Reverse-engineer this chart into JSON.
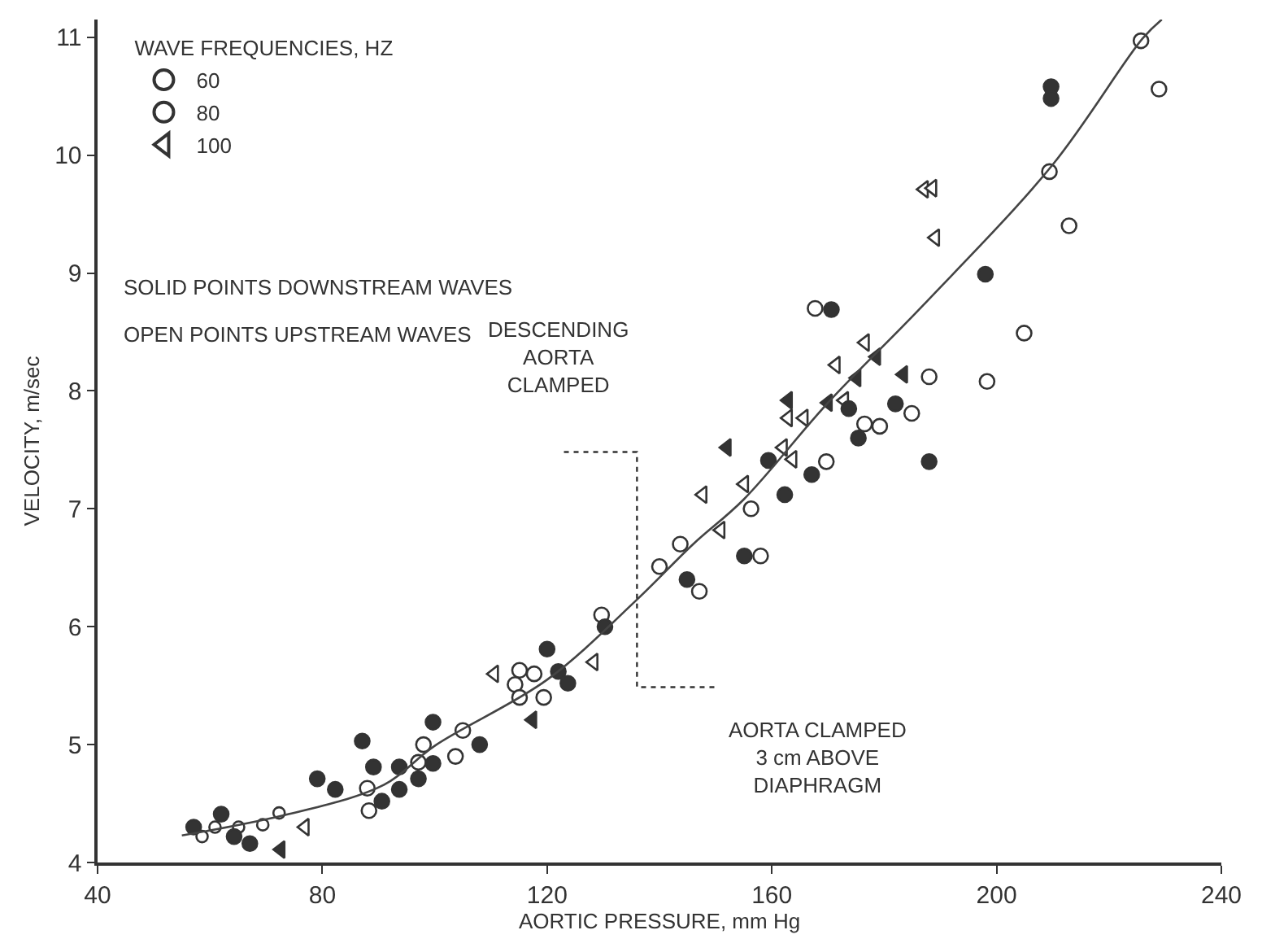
{
  "chart_data": {
    "type": "scatter",
    "xlabel": "AORTIC PRESSURE, mm Hg",
    "ylabel": "VELOCITY, m/sec",
    "legend_title": "WAVE FREQUENCIES, HZ",
    "xlim": [
      40,
      240
    ],
    "xticks": [
      40,
      80,
      120,
      160,
      200,
      240
    ],
    "ylim": [
      4,
      11.15
    ],
    "yticks": [
      4,
      5,
      6,
      7,
      8,
      9,
      10,
      11
    ],
    "legend": "top left",
    "series": [
      {
        "name": "60",
        "color": "#ffffff",
        "marker": "circle",
        "x": [
          58.6,
          60.9,
          65.1,
          69.4,
          72.3
        ],
        "values": [
          4.22,
          4.3,
          4.3,
          4.32,
          4.42
        ]
      },
      {
        "name": "80",
        "color": "#ffffff",
        "marker": "circle",
        "x": [
          88,
          88.3,
          97.1,
          98,
          105,
          103.7,
          115.1,
          114.3,
          117.7,
          115.1,
          119.4,
          129.7,
          140,
          143.7,
          156.3,
          147.1,
          158,
          169.7,
          176.5,
          179.2,
          184.9,
          188,
          198.3,
          204.9,
          167.7,
          209.4,
          212.9,
          225.7,
          228.9
        ],
        "values": [
          4.63,
          4.44,
          4.85,
          5.0,
          5.12,
          4.9,
          5.63,
          5.51,
          5.6,
          5.4,
          5.4,
          6.1,
          6.51,
          6.7,
          7.0,
          6.3,
          6.6,
          7.4,
          7.72,
          7.7,
          7.81,
          8.12,
          8.08,
          8.49,
          8.7,
          9.86,
          9.4,
          10.97,
          10.56
        ]
      },
      {
        "name": "100",
        "color": "#ffffff",
        "marker": "triangle",
        "x": [
          76.9,
          110.6,
          128.3,
          147.7,
          155.1,
          163.7,
          162,
          171.4,
          176.6,
          150.9,
          172.9,
          165.7,
          162.9,
          189.1,
          187.1,
          188.6
        ],
        "values": [
          4.3,
          5.6,
          5.7,
          7.12,
          7.21,
          7.42,
          7.52,
          8.22,
          8.41,
          6.82,
          7.92,
          7.77,
          7.77,
          9.3,
          9.71,
          9.72
        ]
      },
      {
        "color": "#333333",
        "marker": "circle",
        "x": [
          57.1,
          62,
          64.3,
          67.1,
          79.1,
          82.3,
          87.1,
          89.1,
          90.6,
          93.7,
          93.7,
          97.1,
          99.7,
          99.7,
          108,
          120,
          122,
          123.7,
          130.3,
          144.9,
          155.1,
          159.4,
          162.3,
          167.1,
          173.7,
          175.4,
          182,
          188,
          170.6,
          198,
          209.7,
          209.7
        ],
        "values": [
          4.3,
          4.41,
          4.22,
          4.16,
          4.71,
          4.62,
          5.03,
          4.81,
          4.52,
          4.62,
          4.81,
          4.71,
          5.19,
          4.84,
          5.0,
          5.81,
          5.62,
          5.52,
          6.0,
          6.4,
          6.6,
          7.41,
          7.12,
          7.29,
          7.85,
          7.6,
          7.89,
          7.4,
          8.69,
          8.99,
          10.58,
          10.48
        ]
      },
      {
        "color": "#333333",
        "marker": "triangle",
        "x": [
          72.6,
          117.4,
          152,
          162.9,
          178.6,
          183.4,
          170,
          175.1
        ],
        "values": [
          4.11,
          5.21,
          7.52,
          7.92,
          8.29,
          8.14,
          7.9,
          8.11
        ]
      },
      {
        "type": "line",
        "color": "#444444",
        "marker": "none",
        "x": [
          55,
          74,
          91,
          100,
          120,
          136,
          146,
          155,
          170,
          187,
          210,
          226,
          229.4
        ],
        "values": [
          4.23,
          4.41,
          4.66,
          4.99,
          5.55,
          6.23,
          6.7,
          7.08,
          7.9,
          8.73,
          9.92,
          10.99,
          11.15
        ]
      }
    ],
    "annotations": [
      "SOLID POINTS DOWNSTREAM WAVES",
      "OPEN POINTS UPSTREAM WAVES",
      "DESCENDING\nAORTA\nCLAMPED",
      "AORTA CLAMPED\n3 cm ABOVE\nDIAPHRAGM"
    ]
  }
}
